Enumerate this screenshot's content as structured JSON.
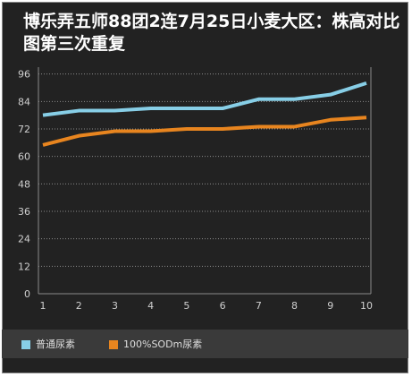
{
  "chart_data": {
    "type": "line",
    "title": "博乐弄五师88团2连7月25日小麦大区：株高对比图第三次重复",
    "x": [
      1,
      2,
      3,
      4,
      5,
      6,
      7,
      8,
      9,
      10
    ],
    "yticks": [
      0,
      12,
      24,
      36,
      48,
      60,
      72,
      84,
      96
    ],
    "ylim": [
      0,
      99
    ],
    "grid": true,
    "legend_position": "bottom",
    "series": [
      {
        "name": "普通尿素",
        "color": "#87cee6",
        "values": [
          78,
          80,
          80,
          81,
          81,
          81,
          85,
          85,
          87,
          92
        ]
      },
      {
        "name": "100%SODm尿素",
        "color": "#e8851f",
        "values": [
          65,
          69,
          71,
          71,
          72,
          72,
          73,
          73,
          76,
          77
        ]
      }
    ]
  }
}
